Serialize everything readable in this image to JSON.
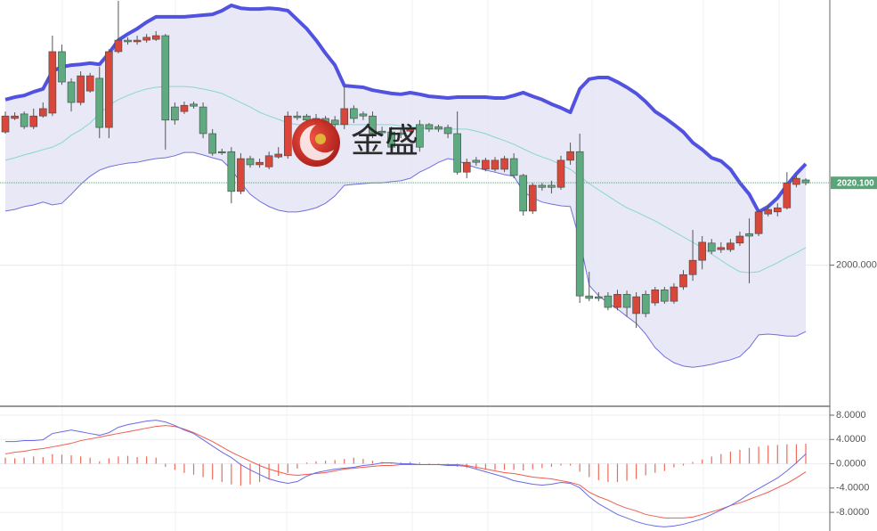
{
  "watermark": "金盛",
  "chart_data": [
    {
      "type": "candlestick",
      "ylim": [
        1965.8,
        2064.7
      ],
      "yticks": [
        {
          "value": 2000,
          "label": "2000.000"
        }
      ],
      "grid": true,
      "current_price": {
        "value": 2020.1,
        "label": "2020.100",
        "color": "#5aa47a"
      },
      "up_color": "#d9473b",
      "down_color": "#5faa80",
      "open": [
        2032.5,
        2035.8,
        2036.9,
        2033.8,
        2036.4,
        2037.1,
        2052.1,
        2044.7,
        2039.7,
        2042.5,
        2045.6,
        2033.6,
        2052.1,
        2054.9,
        2054.5,
        2054.9,
        2055.1,
        2056.0,
        2038.6,
        2037.5,
        2039.3,
        2038.6,
        2032.1,
        2027.7,
        2027.7,
        2018.0,
        2026.0,
        2024.5,
        2024.0,
        2026.4,
        2026.7,
        2036.4,
        2036.4,
        2035.8,
        2035.8,
        2035.4,
        2034.3,
        2038.2,
        2036.9,
        2036.4,
        2032.7,
        2032.5,
        2032.3,
        2032.7,
        2034.3,
        2034.3,
        2033.8,
        2033.6,
        2032.1,
        2022.7,
        2025.6,
        2023.4,
        2023.4,
        2023.4,
        2026.0,
        2021.9,
        2013.2,
        2019.5,
        2019.5,
        2019.0,
        2025.6,
        2027.7,
        1992.5,
        1992.3,
        1992.5,
        1989.7,
        1992.9,
        1988.2,
        1992.9,
        1990.8,
        1994.0,
        1991.2,
        1994.7,
        1997.7,
        2001.2,
        2005.4,
        2003.8,
        2003.8,
        2005.4,
        2007.7,
        2007.7,
        2012.5,
        2013.0,
        2014.0,
        2019.7,
        2020.8
      ],
      "high": [
        2037.5,
        2037.3,
        2037.5,
        2038.2,
        2039.7,
        2056.0,
        2053.8,
        2045.6,
        2047.3,
        2046.9,
        2048.4,
        2052.7,
        2064.5,
        2055.6,
        2056.0,
        2056.4,
        2057.1,
        2056.4,
        2039.7,
        2039.9,
        2039.9,
        2039.7,
        2033.2,
        2028.4,
        2028.8,
        2027.3,
        2026.7,
        2026.0,
        2027.7,
        2028.8,
        2037.5,
        2037.5,
        2036.9,
        2036.9,
        2036.4,
        2036.4,
        2043.6,
        2039.0,
        2037.5,
        2037.5,
        2033.8,
        2033.8,
        2033.2,
        2034.3,
        2035.4,
        2034.7,
        2034.3,
        2034.3,
        2037.5,
        2026.0,
        2026.4,
        2026.2,
        2026.4,
        2026.7,
        2027.3,
        2022.3,
        2020.1,
        2020.1,
        2020.6,
        2026.7,
        2029.9,
        2032.1,
        1998.4,
        1993.4,
        1993.4,
        1994.0,
        1993.8,
        1993.4,
        1993.8,
        1994.7,
        1994.7,
        1995.6,
        1998.8,
        2008.6,
        2007.1,
        2006.4,
        2005.6,
        2006.4,
        2008.2,
        2011.4,
        2013.6,
        2014.7,
        2015.1,
        2022.7,
        2022.1,
        2021.2
      ],
      "low": [
        2032.1,
        2035.4,
        2033.2,
        2033.2,
        2036.0,
        2036.4,
        2044.0,
        2037.5,
        2039.0,
        2042.1,
        2031.0,
        2031.0,
        2051.7,
        2053.8,
        2053.8,
        2054.3,
        2054.7,
        2028.2,
        2034.3,
        2036.9,
        2038.2,
        2031.0,
        2026.7,
        2026.9,
        2015.1,
        2017.3,
        2023.8,
        2023.8,
        2023.4,
        2026.0,
        2026.0,
        2035.4,
        2034.7,
        2034.3,
        2034.3,
        2033.2,
        2033.2,
        2034.7,
        2035.4,
        2031.0,
        2031.7,
        2028.2,
        2031.0,
        2032.1,
        2027.7,
        2032.5,
        2032.5,
        2031.0,
        2022.1,
        2021.2,
        2024.3,
        2022.9,
        2022.9,
        2022.7,
        2021.2,
        2012.1,
        2012.5,
        2018.2,
        2017.5,
        2018.4,
        2024.5,
        1990.8,
        1991.2,
        1991.2,
        1989.0,
        1989.0,
        1987.5,
        1984.7,
        1987.3,
        1990.1,
        1990.6,
        1990.6,
        1994.0,
        1996.2,
        1999.0,
        2002.7,
        2003.0,
        2003.2,
        2004.7,
        1995.6,
        2007.1,
        2011.9,
        2011.9,
        2013.6,
        2019.0,
        2019.5
      ],
      "close": [
        2036.4,
        2036.4,
        2033.8,
        2036.4,
        2038.2,
        2052.1,
        2044.7,
        2039.7,
        2046.2,
        2046.2,
        2033.6,
        2052.1,
        2054.9,
        2054.5,
        2054.9,
        2055.6,
        2056.0,
        2035.4,
        2035.4,
        2039.0,
        2038.8,
        2032.1,
        2027.3,
        2027.5,
        2018.0,
        2026.0,
        2024.5,
        2025.1,
        2026.7,
        2027.1,
        2036.4,
        2036.0,
        2035.4,
        2035.6,
        2034.9,
        2034.3,
        2038.2,
        2035.8,
        2036.4,
        2032.1,
        2032.3,
        2028.8,
        2031.9,
        2033.2,
        2028.8,
        2033.2,
        2033.2,
        2032.1,
        2022.7,
        2025.1,
        2025.1,
        2025.6,
        2025.6,
        2026.0,
        2021.9,
        2013.2,
        2019.5,
        2019.0,
        2019.0,
        2025.6,
        2027.7,
        1992.5,
        1991.9,
        1991.9,
        1989.7,
        1992.9,
        1989.7,
        1992.3,
        1988.2,
        1994.0,
        1991.2,
        1994.7,
        1997.7,
        2001.2,
        2005.6,
        2003.4,
        2004.3,
        2005.4,
        2007.1,
        2007.1,
        2013.0,
        2013.6,
        2014.0,
        2020.1,
        2021.2,
        2020.1
      ],
      "band_fill": "#e4e4f4",
      "bands": {
        "upper": {
          "color": "#5252e0",
          "values": [
            2040.4,
            2041.0,
            2041.4,
            2042.3,
            2043.0,
            2047.3,
            2048.4,
            2048.8,
            2049.0,
            2049.3,
            2049.0,
            2051.7,
            2054.9,
            2056.4,
            2057.7,
            2059.3,
            2060.6,
            2060.6,
            2060.6,
            2060.6,
            2060.8,
            2061.0,
            2061.2,
            2062.1,
            2063.4,
            2062.7,
            2062.5,
            2062.5,
            2062.7,
            2062.5,
            2062.1,
            2059.9,
            2057.7,
            2054.9,
            2051.7,
            2048.8,
            2043.8,
            2043.6,
            2043.4,
            2042.7,
            2042.3,
            2041.9,
            2041.7,
            2042.1,
            2041.7,
            2041.2,
            2041.0,
            2040.8,
            2041.0,
            2041.0,
            2041.0,
            2041.0,
            2040.8,
            2040.8,
            2041.4,
            2042.1,
            2041.2,
            2040.4,
            2039.3,
            2038.4,
            2037.3,
            2043.0,
            2045.4,
            2045.8,
            2045.8,
            2044.7,
            2043.4,
            2041.9,
            2039.9,
            2037.5,
            2036.0,
            2034.3,
            2032.5,
            2029.9,
            2028.2,
            2026.2,
            2025.4,
            2023.4,
            2020.1,
            2017.3,
            2013.0,
            2014.3,
            2016.4,
            2019.5,
            2022.3,
            2024.7
          ]
        },
        "middle": {
          "color": "#86d8cc",
          "values": [
            2025.6,
            2026.2,
            2026.9,
            2027.5,
            2028.2,
            2028.8,
            2029.9,
            2031.7,
            2033.0,
            2034.7,
            2036.9,
            2039.0,
            2040.4,
            2041.4,
            2042.3,
            2043.0,
            2043.4,
            2043.6,
            2043.6,
            2043.6,
            2043.4,
            2043.0,
            2042.5,
            2041.9,
            2040.8,
            2039.7,
            2038.6,
            2037.3,
            2036.4,
            2035.6,
            2034.7,
            2034.3,
            2034.3,
            2034.3,
            2034.3,
            2034.3,
            2034.3,
            2034.3,
            2034.3,
            2034.3,
            2034.3,
            2034.3,
            2034.0,
            2033.8,
            2033.6,
            2033.2,
            2033.2,
            2033.2,
            2033.2,
            2033.2,
            2032.7,
            2032.1,
            2031.2,
            2030.4,
            2029.5,
            2028.4,
            2027.3,
            2026.4,
            2025.6,
            2024.5,
            2023.4,
            2021.7,
            2019.9,
            2018.4,
            2016.9,
            2015.4,
            2014.0,
            2013.0,
            2011.9,
            2010.8,
            2009.5,
            2008.2,
            2006.9,
            2005.6,
            2004.3,
            2002.7,
            2001.2,
            1999.7,
            1998.4,
            1998.2,
            1998.4,
            1999.5,
            2000.6,
            2001.9,
            2003.0,
            2004.3
          ]
        },
        "lower": {
          "color": "#7070e0",
          "values": [
            2013.2,
            2013.6,
            2014.3,
            2014.7,
            2015.4,
            2014.7,
            2015.1,
            2017.3,
            2019.7,
            2021.7,
            2023.2,
            2024.0,
            2024.5,
            2024.9,
            2025.1,
            2025.6,
            2026.0,
            2026.2,
            2026.7,
            2027.5,
            2027.5,
            2026.9,
            2026.2,
            2025.6,
            2023.4,
            2020.1,
            2017.3,
            2015.6,
            2014.3,
            2013.4,
            2013.0,
            2013.0,
            2013.4,
            2014.0,
            2015.1,
            2016.9,
            2019.5,
            2019.7,
            2019.9,
            2020.1,
            2020.1,
            2020.4,
            2020.6,
            2021.2,
            2022.7,
            2023.8,
            2025.1,
            2026.0,
            2025.6,
            2024.5,
            2023.8,
            2023.2,
            2022.7,
            2022.1,
            2021.7,
            2018.0,
            2016.4,
            2015.4,
            2014.9,
            2014.5,
            2014.3,
            2006.0,
            1995.1,
            1992.5,
            1990.8,
            1989.3,
            1987.5,
            1985.8,
            1983.2,
            1979.9,
            1977.7,
            1976.2,
            1975.4,
            1975.1,
            1975.4,
            1975.8,
            1976.4,
            1976.9,
            1977.7,
            1979.9,
            1983.0,
            1983.2,
            1983.0,
            1982.7,
            1982.7,
            1983.8
          ]
        }
      }
    },
    {
      "type": "macd",
      "ylim": [
        -11.07,
        9.17
      ],
      "yticks": [
        {
          "value": 8,
          "label": "8.0000"
        },
        {
          "value": 4,
          "label": "4.0000"
        },
        {
          "value": 0,
          "label": "0.0000"
        },
        {
          "value": -4,
          "label": "-4.0000"
        },
        {
          "value": -8,
          "label": "-8.0000"
        }
      ],
      "grid": true,
      "histogram": {
        "color": "#ee6a5a",
        "values": [
          1.0,
          0.9,
          1.0,
          1.2,
          1.1,
          1.6,
          1.5,
          1.4,
          1.2,
          1.0,
          0.4,
          0.9,
          1.2,
          1.3,
          1.1,
          1.2,
          1.0,
          -0.5,
          -1.0,
          -1.5,
          -1.8,
          -2.2,
          -2.6,
          -3.0,
          -3.4,
          -3.6,
          -3.4,
          -3.0,
          -2.6,
          -2.0,
          -1.5,
          -0.8,
          0.2,
          0.4,
          0.5,
          0.6,
          0.8,
          1.0,
          0.8,
          0.5,
          0.3,
          0.2,
          0.2,
          0.3,
          0.2,
          0.1,
          -0.2,
          -0.3,
          -0.5,
          -0.7,
          -0.8,
          -0.9,
          -1.0,
          -1.0,
          -1.0,
          -1.1,
          -0.9,
          -0.7,
          -0.5,
          -0.3,
          -0.3,
          -1.3,
          -2.2,
          -2.7,
          -3.0,
          -3.0,
          -2.8,
          -2.5,
          -1.9,
          -1.5,
          -1.2,
          -0.6,
          -0.3,
          0.3,
          0.7,
          1.2,
          1.6,
          2.0,
          2.3,
          2.6,
          2.8,
          3.0,
          3.1,
          3.2,
          3.2,
          3.3
        ]
      },
      "dif": {
        "color": "#6a6ae6",
        "values": [
          3.66,
          3.66,
          3.81,
          3.81,
          3.95,
          4.98,
          5.27,
          5.56,
          5.27,
          4.98,
          4.69,
          5.12,
          6.0,
          6.44,
          6.73,
          7.03,
          7.17,
          6.88,
          6.3,
          5.56,
          4.98,
          3.95,
          2.93,
          1.9,
          1.02,
          -0.15,
          -1.02,
          -1.76,
          -2.49,
          -2.93,
          -3.22,
          -2.93,
          -2.05,
          -1.46,
          -1.17,
          -0.88,
          -0.73,
          -0.59,
          -0.29,
          -0.15,
          0.15,
          0.15,
          0,
          0,
          -0.15,
          -0.15,
          -0.15,
          -0.29,
          -0.29,
          -0.44,
          -0.88,
          -1.32,
          -1.76,
          -2.2,
          -2.78,
          -3.07,
          -3.37,
          -3.51,
          -3.37,
          -3.07,
          -3.22,
          -3.95,
          -5.42,
          -6.59,
          -7.47,
          -8.35,
          -8.93,
          -9.52,
          -9.96,
          -10.25,
          -10.4,
          -10.25,
          -9.96,
          -9.52,
          -9.08,
          -8.35,
          -7.61,
          -6.88,
          -6.0,
          -4.98,
          -4.1,
          -3.22,
          -2.34,
          -1.17,
          0.15,
          1.61
        ]
      },
      "dea": {
        "color": "#ef5d4e",
        "values": [
          1.61,
          1.9,
          2.05,
          2.34,
          2.49,
          2.78,
          3.07,
          3.37,
          3.81,
          4.1,
          4.39,
          4.69,
          4.98,
          5.27,
          5.56,
          5.86,
          6.15,
          6.3,
          6.15,
          5.71,
          5.12,
          4.39,
          3.66,
          2.78,
          1.9,
          1.17,
          0.44,
          -0.29,
          -0.88,
          -1.32,
          -1.76,
          -1.9,
          -1.76,
          -1.61,
          -1.46,
          -1.17,
          -0.88,
          -0.73,
          -0.59,
          -0.44,
          -0.29,
          -0.29,
          -0.15,
          -0.15,
          -0.15,
          -0.15,
          -0.15,
          -0.15,
          -0.15,
          -0.29,
          -0.59,
          -0.88,
          -1.17,
          -1.46,
          -1.61,
          -1.9,
          -2.2,
          -2.34,
          -2.49,
          -2.78,
          -3.07,
          -3.51,
          -4.69,
          -5.42,
          -6.0,
          -6.73,
          -7.32,
          -7.76,
          -8.35,
          -8.64,
          -8.93,
          -8.93,
          -8.93,
          -8.78,
          -8.35,
          -7.91,
          -7.47,
          -6.88,
          -6.44,
          -5.86,
          -5.27,
          -4.69,
          -3.95,
          -3.22,
          -2.34,
          -1.32
        ]
      }
    }
  ]
}
